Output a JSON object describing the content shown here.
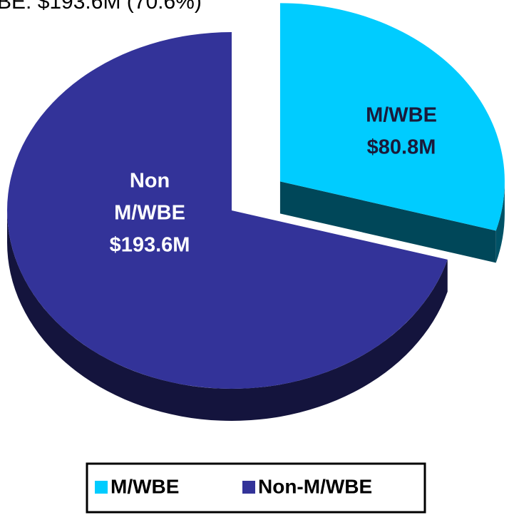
{
  "chart_data": {
    "type": "pie",
    "title": "BE: $193.6M (70.6%)",
    "categories": [
      "M/WBE",
      "Non-M/WBE"
    ],
    "slice_labels": [
      [
        "M/WBE"
      ],
      [
        "Non",
        "M/WBE"
      ]
    ],
    "values": [
      80.8,
      193.6
    ],
    "value_labels": [
      "$80.8M",
      "$193.6M"
    ],
    "colors": [
      "#00ccff",
      "#333399"
    ],
    "legend": "bottom"
  }
}
